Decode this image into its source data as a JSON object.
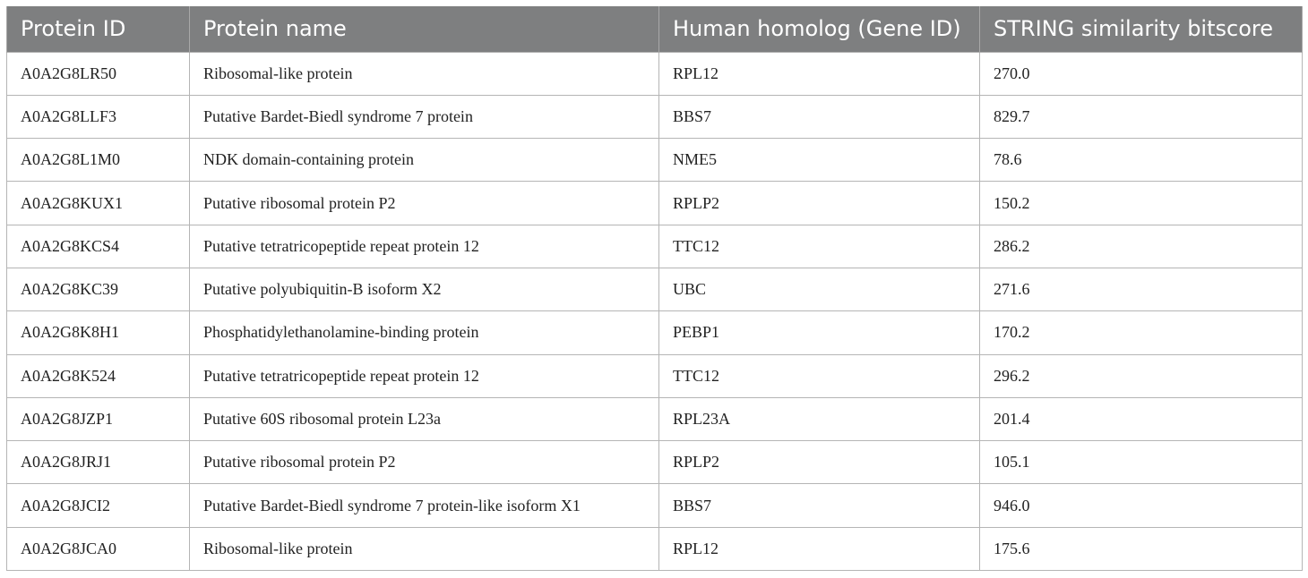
{
  "table": {
    "headers": [
      "Protein ID",
      "Protein name",
      "Human homolog (Gene ID)",
      "STRING similarity bitscore"
    ],
    "rows": [
      [
        "A0A2G8LR50",
        "Ribosomal-like protein",
        "RPL12",
        "270.0"
      ],
      [
        "A0A2G8LLF3",
        "Putative Bardet-Biedl syndrome 7 protein",
        "BBS7",
        "829.7"
      ],
      [
        "A0A2G8L1M0",
        "NDK domain-containing protein",
        "NME5",
        "78.6"
      ],
      [
        "A0A2G8KUX1",
        "Putative ribosomal protein P2",
        "RPLP2",
        "150.2"
      ],
      [
        "A0A2G8KCS4",
        "Putative tetratricopeptide repeat protein 12",
        "TTC12",
        "286.2"
      ],
      [
        "A0A2G8KC39",
        "Putative polyubiquitin-B isoform X2",
        "UBC",
        "271.6"
      ],
      [
        "A0A2G8K8H1",
        "Phosphatidylethanolamine-binding protein",
        "PEBP1",
        "170.2"
      ],
      [
        "A0A2G8K524",
        "Putative tetratricopeptide repeat protein 12",
        "TTC12",
        "296.2"
      ],
      [
        "A0A2G8JZP1",
        "Putative 60S ribosomal protein L23a",
        "RPL23A",
        "201.4"
      ],
      [
        "A0A2G8JRJ1",
        "Putative ribosomal protein P2",
        "RPLP2",
        "105.1"
      ],
      [
        "A0A2G8JCI2",
        "Putative Bardet-Biedl syndrome 7 protein-like isoform X1",
        "BBS7",
        "946.0"
      ],
      [
        "A0A2G8JCA0",
        "Ribosomal-like protein",
        "RPL12",
        "175.6"
      ]
    ]
  },
  "colors": {
    "header_background": "#7e7f80",
    "header_text": "#ffffff",
    "border": "#b5b5b5"
  }
}
